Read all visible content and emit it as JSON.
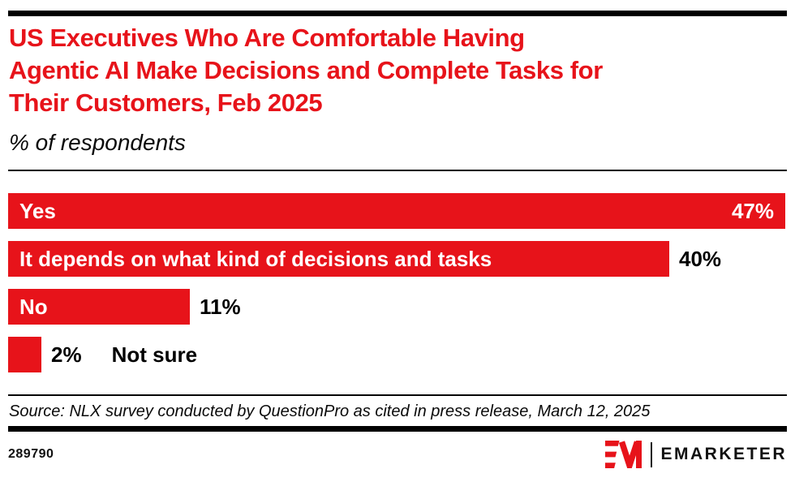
{
  "header": {
    "title_lines": [
      "US Executives Who Are Comfortable Having",
      "Agentic AI Make Decisions and Complete Tasks for",
      "Their Customers, Feb 2025"
    ],
    "subtitle": "% of respondents"
  },
  "chart_data": {
    "type": "bar",
    "orientation": "horizontal",
    "title": "US Executives Who Are Comfortable Having Agentic AI Make Decisions and Complete Tasks for Their Customers, Feb 2025",
    "subtitle": "% of respondents",
    "unit": "%",
    "xlabel": "",
    "ylabel": "",
    "xlim": [
      0,
      47
    ],
    "grid": false,
    "legend": false,
    "categories": [
      "Yes",
      "It depends on what kind of decisions and tasks",
      "No",
      "Not sure"
    ],
    "values": [
      47,
      40,
      11,
      2
    ],
    "bars": [
      {
        "label": "Yes",
        "value": 47,
        "value_label": "47%",
        "label_inside": true,
        "value_inside": true
      },
      {
        "label": "It depends on what kind of decisions and tasks",
        "value": 40,
        "value_label": "40%",
        "label_inside": true,
        "value_inside": false
      },
      {
        "label": "No",
        "value": 11,
        "value_label": "11%",
        "label_inside": true,
        "value_inside": false
      },
      {
        "label": "Not sure",
        "value": 2,
        "value_label": "2%",
        "label_inside": false,
        "value_inside": false
      }
    ],
    "bar_color": "#E7131A"
  },
  "footer": {
    "source": "Source: NLX survey conducted by QuestionPro as cited in press release, March 12, 2025",
    "chart_id": "289790",
    "brand": "EMARKETER"
  },
  "colors": {
    "accent_red": "#E7131A",
    "text_black": "#000000",
    "bar_text_white": "#ffffff"
  }
}
